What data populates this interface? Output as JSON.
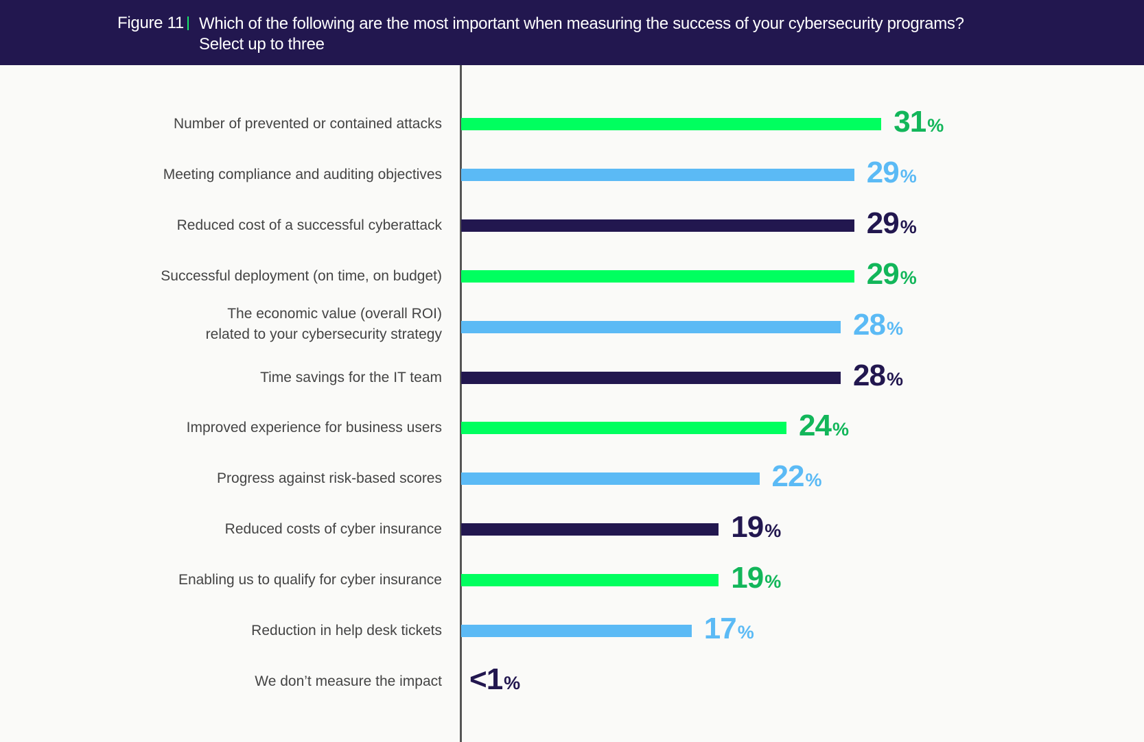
{
  "header": {
    "figure": "Figure 11",
    "question": "Which of the following are the most important when measuring the success of your cybersecurity programs?",
    "instruction": "Select up to three"
  },
  "colors": {
    "header_bg": "#22174f",
    "green_bar": "#00ff5f",
    "green_text": "#12b65a",
    "blue": "#5bbaf5",
    "navy": "#22174f"
  },
  "chart_data": {
    "type": "bar",
    "orientation": "horizontal",
    "grid": false,
    "unit": "%",
    "categories": [
      "Number of prevented or contained attacks",
      "Meeting compliance and auditing objectives",
      "Reduced cost of a successful cyberattack",
      "Successful deployment (on time, on budget)",
      "The economic value (overall ROI)\nrelated to your cybersecurity strategy",
      "Time savings for the IT team",
      "Improved experience for business users",
      "Progress against risk-based scores",
      "Reduced costs of cyber insurance",
      "Enabling us to qualify for cyber insurance",
      "Reduction in help desk tickets",
      "We don’t measure the impact"
    ],
    "values": [
      31,
      29,
      29,
      29,
      28,
      28,
      24,
      22,
      19,
      19,
      17,
      0
    ],
    "value_labels": [
      "31",
      "29",
      "29",
      "29",
      "28",
      "28",
      "24",
      "22",
      "19",
      "19",
      "17",
      "<1"
    ],
    "percent_sign": "%",
    "bar_colors": [
      "green",
      "blue",
      "navy",
      "green",
      "blue",
      "navy",
      "green",
      "blue",
      "navy",
      "green",
      "blue",
      "navy"
    ]
  }
}
